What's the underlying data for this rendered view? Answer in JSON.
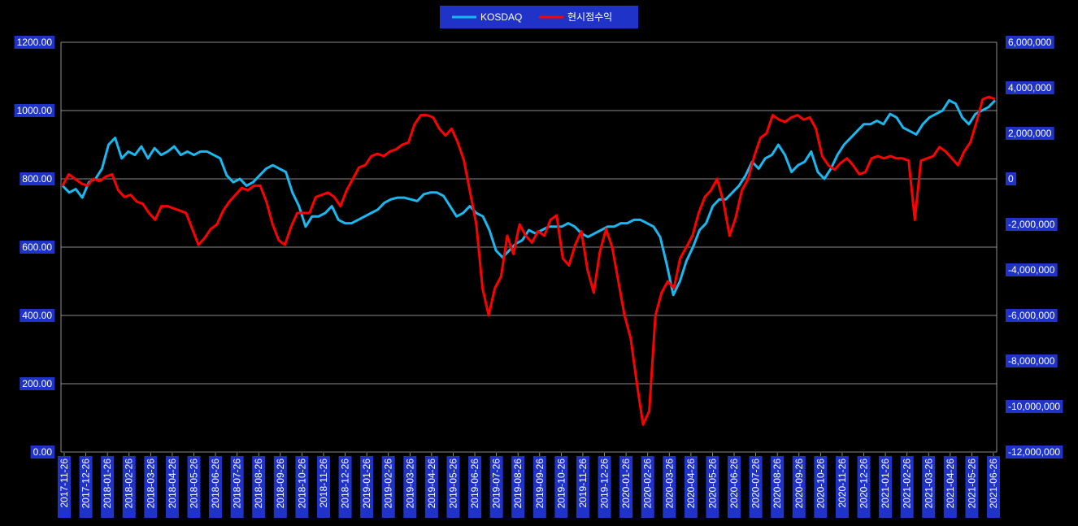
{
  "chart_data": {
    "type": "line",
    "legend_position": "top-center",
    "grid": true,
    "colors": {
      "background": "#000000",
      "label_box": "#1f33c8",
      "grid": "#b4b4b4",
      "kosdaq": "#19b8f0",
      "profit": "#ff0000",
      "text": "#ffffff"
    },
    "x_tick_labels": [
      "2017-11-26",
      "2017-12-26",
      "2018-01-26",
      "2018-02-26",
      "2018-03-26",
      "2018-04-26",
      "2018-05-26",
      "2018-06-26",
      "2018-07-26",
      "2018-08-26",
      "2018-09-26",
      "2018-10-26",
      "2018-11-26",
      "2018-12-26",
      "2019-01-26",
      "2019-02-26",
      "2019-03-26",
      "2019-04-26",
      "2019-05-26",
      "2019-06-26",
      "2019-07-26",
      "2019-08-26",
      "2019-09-26",
      "2019-10-26",
      "2019-11-26",
      "2019-12-26",
      "2020-01-26",
      "2020-02-26",
      "2020-03-26",
      "2020-04-26",
      "2020-05-26",
      "2020-06-26",
      "2020-07-26",
      "2020-08-26",
      "2020-09-26",
      "2020-10-26",
      "2020-11-26",
      "2020-12-26",
      "2021-01-26",
      "2021-02-26",
      "2021-03-26",
      "2021-04-26",
      "2021-05-26",
      "2021-06-26"
    ],
    "y_left": {
      "min": 0,
      "max": 1200,
      "ticks": [
        "0.00",
        "200.00",
        "400.00",
        "600.00",
        "800.00",
        "1000.00",
        "1200.00"
      ]
    },
    "y_right": {
      "min": -12000000,
      "max": 6000000,
      "ticks": [
        "-12,000,000",
        "-10,000,000",
        "-8,000,000",
        "-6,000,000",
        "-4,000,000",
        "-2,000,000",
        "0",
        "2,000,000",
        "4,000,000",
        "6,000,000"
      ]
    },
    "series": [
      {
        "name": "KOSDAQ",
        "axis": "left",
        "values": [
          780,
          760,
          770,
          745,
          790,
          800,
          830,
          900,
          920,
          860,
          880,
          870,
          895,
          860,
          890,
          870,
          880,
          895,
          870,
          880,
          870,
          880,
          880,
          870,
          860,
          810,
          790,
          800,
          780,
          790,
          810,
          830,
          840,
          830,
          820,
          760,
          720,
          660,
          690,
          690,
          700,
          720,
          680,
          670,
          670,
          680,
          690,
          700,
          710,
          730,
          740,
          745,
          745,
          740,
          735,
          755,
          760,
          760,
          750,
          720,
          690,
          700,
          720,
          700,
          690,
          650,
          590,
          570,
          590,
          610,
          620,
          650,
          640,
          650,
          660,
          660,
          660,
          670,
          660,
          640,
          630,
          640,
          650,
          660,
          660,
          670,
          670,
          680,
          680,
          670,
          660,
          630,
          550,
          460,
          500,
          560,
          600,
          650,
          670,
          720,
          740,
          740,
          760,
          780,
          810,
          850,
          830,
          860,
          870,
          900,
          870,
          820,
          840,
          850,
          880,
          820,
          800,
          830,
          870,
          900,
          920,
          940,
          960,
          960,
          970,
          960,
          990,
          980,
          950,
          940,
          930,
          960,
          980,
          990,
          1000,
          1030,
          1020,
          980,
          960,
          990,
          1000,
          1010,
          1030
        ]
      },
      {
        "name": "현시점수익",
        "axis": "right",
        "values": [
          -300000,
          200000,
          0,
          -200000,
          -300000,
          0,
          -100000,
          100000,
          200000,
          -500000,
          -800000,
          -700000,
          -1000000,
          -1100000,
          -1500000,
          -1800000,
          -1200000,
          -1200000,
          -1300000,
          -1400000,
          -1500000,
          -2200000,
          -2900000,
          -2600000,
          -2200000,
          -2000000,
          -1400000,
          -1000000,
          -700000,
          -400000,
          -500000,
          -300000,
          -300000,
          -1000000,
          -2000000,
          -2700000,
          -2900000,
          -2100000,
          -1500000,
          -1500000,
          -1500000,
          -800000,
          -700000,
          -600000,
          -800000,
          -1200000,
          -500000,
          0,
          500000,
          600000,
          1000000,
          1100000,
          1000000,
          1200000,
          1300000,
          1500000,
          1600000,
          2400000,
          2800000,
          2800000,
          2700000,
          2200000,
          1900000,
          2200000,
          1600000,
          800000,
          -600000,
          -2000000,
          -4800000,
          -6000000,
          -4800000,
          -4300000,
          -2500000,
          -3300000,
          -2000000,
          -2500000,
          -2800000,
          -2300000,
          -2500000,
          -1800000,
          -1600000,
          -3500000,
          -3800000,
          -2900000,
          -2300000,
          -4000000,
          -5000000,
          -3200000,
          -2200000,
          -3000000,
          -4500000,
          -6000000,
          -7000000,
          -9000000,
          -10800000,
          -10200000,
          -6000000,
          -5000000,
          -4500000,
          -4800000,
          -3500000,
          -3000000,
          -2500000,
          -1500000,
          -800000,
          -500000,
          0,
          -1000000,
          -2500000,
          -1700000,
          -500000,
          0,
          1000000,
          1800000,
          2000000,
          2800000,
          2600000,
          2500000,
          2700000,
          2800000,
          2600000,
          2700000,
          2200000,
          1000000,
          600000,
          400000,
          700000,
          900000,
          600000,
          200000,
          300000,
          900000,
          1000000,
          900000,
          1000000,
          900000,
          900000,
          800000,
          -1800000,
          800000,
          900000,
          1000000,
          1400000,
          1200000,
          900000,
          600000,
          1200000,
          1600000,
          2500000,
          3500000,
          3600000,
          3500000
        ]
      }
    ]
  }
}
